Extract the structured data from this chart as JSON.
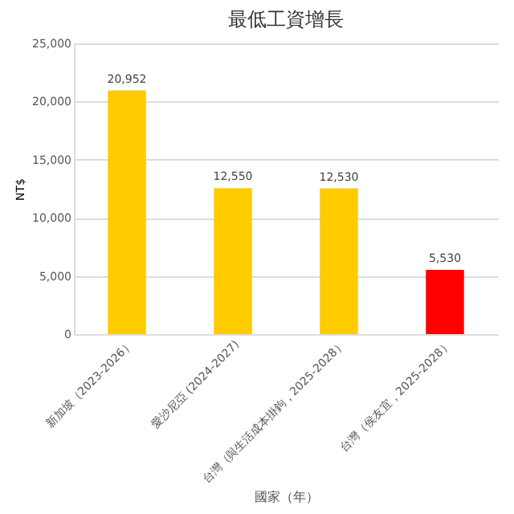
{
  "chart_data": {
    "type": "bar",
    "title": "最低工資增長",
    "xlabel": "國家（年）",
    "ylabel": "NT$",
    "categories": [
      "新加坡（2023-2026）",
      "愛沙尼亞 (2024-2027)",
      "台灣（與生活成本掛鉤，2025-2028）",
      "台灣（侯友宜，2025-2028）"
    ],
    "values": [
      20952,
      12550,
      12530,
      5530
    ],
    "value_labels": [
      "20,952",
      "12,550",
      "12,530",
      "5,530"
    ],
    "colors": [
      "#ffcc00",
      "#ffcc00",
      "#ffcc00",
      "#ff0000"
    ],
    "ylim": [
      0,
      25000
    ],
    "yticks": [
      0,
      {
        "value": 5000,
        "label": "5,000"
      },
      {
        "value": 10000,
        "label": "10,000"
      },
      {
        "value": 15000,
        "label": "15,000"
      },
      {
        "value": 20000,
        "label": "20,000"
      },
      {
        "value": 25000,
        "label": "25,000"
      }
    ],
    "grid": "y",
    "data_labels": true
  }
}
